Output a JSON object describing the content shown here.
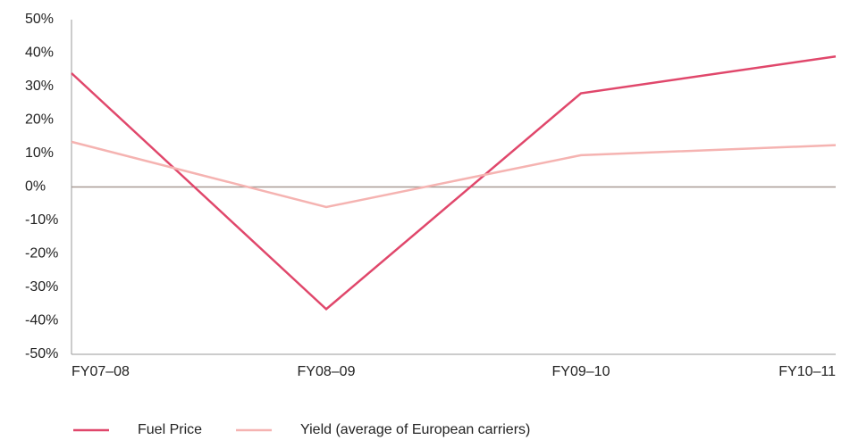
{
  "chart_data": {
    "type": "line",
    "categories": [
      "FY07–08",
      "FY08–09",
      "FY09–10",
      "FY10–11"
    ],
    "series": [
      {
        "name": "Fuel Price",
        "color": "#e0476b",
        "values": [
          34,
          -36.5,
          28,
          39
        ]
      },
      {
        "name": "Yield (average of European carriers)",
        "color": "#f5b3b1",
        "values": [
          13.5,
          -6,
          9.5,
          12.5
        ]
      }
    ],
    "ylim": [
      -50,
      50
    ],
    "yticks": [
      {
        "value": -50,
        "label": "-50%"
      },
      {
        "value": -40,
        "label": "-40%"
      },
      {
        "value": -30,
        "label": "-30%"
      },
      {
        "value": -20,
        "label": "-20%"
      },
      {
        "value": -10,
        "label": "-10%"
      },
      {
        "value": 0,
        "label": "0%"
      },
      {
        "value": 10,
        "label": "10%"
      },
      {
        "value": 20,
        "label": "20%"
      },
      {
        "value": 30,
        "label": "30%"
      },
      {
        "value": 40,
        "label": "40%"
      },
      {
        "value": 50,
        "label": "50%"
      }
    ],
    "grid": false,
    "legend": "bottom"
  }
}
